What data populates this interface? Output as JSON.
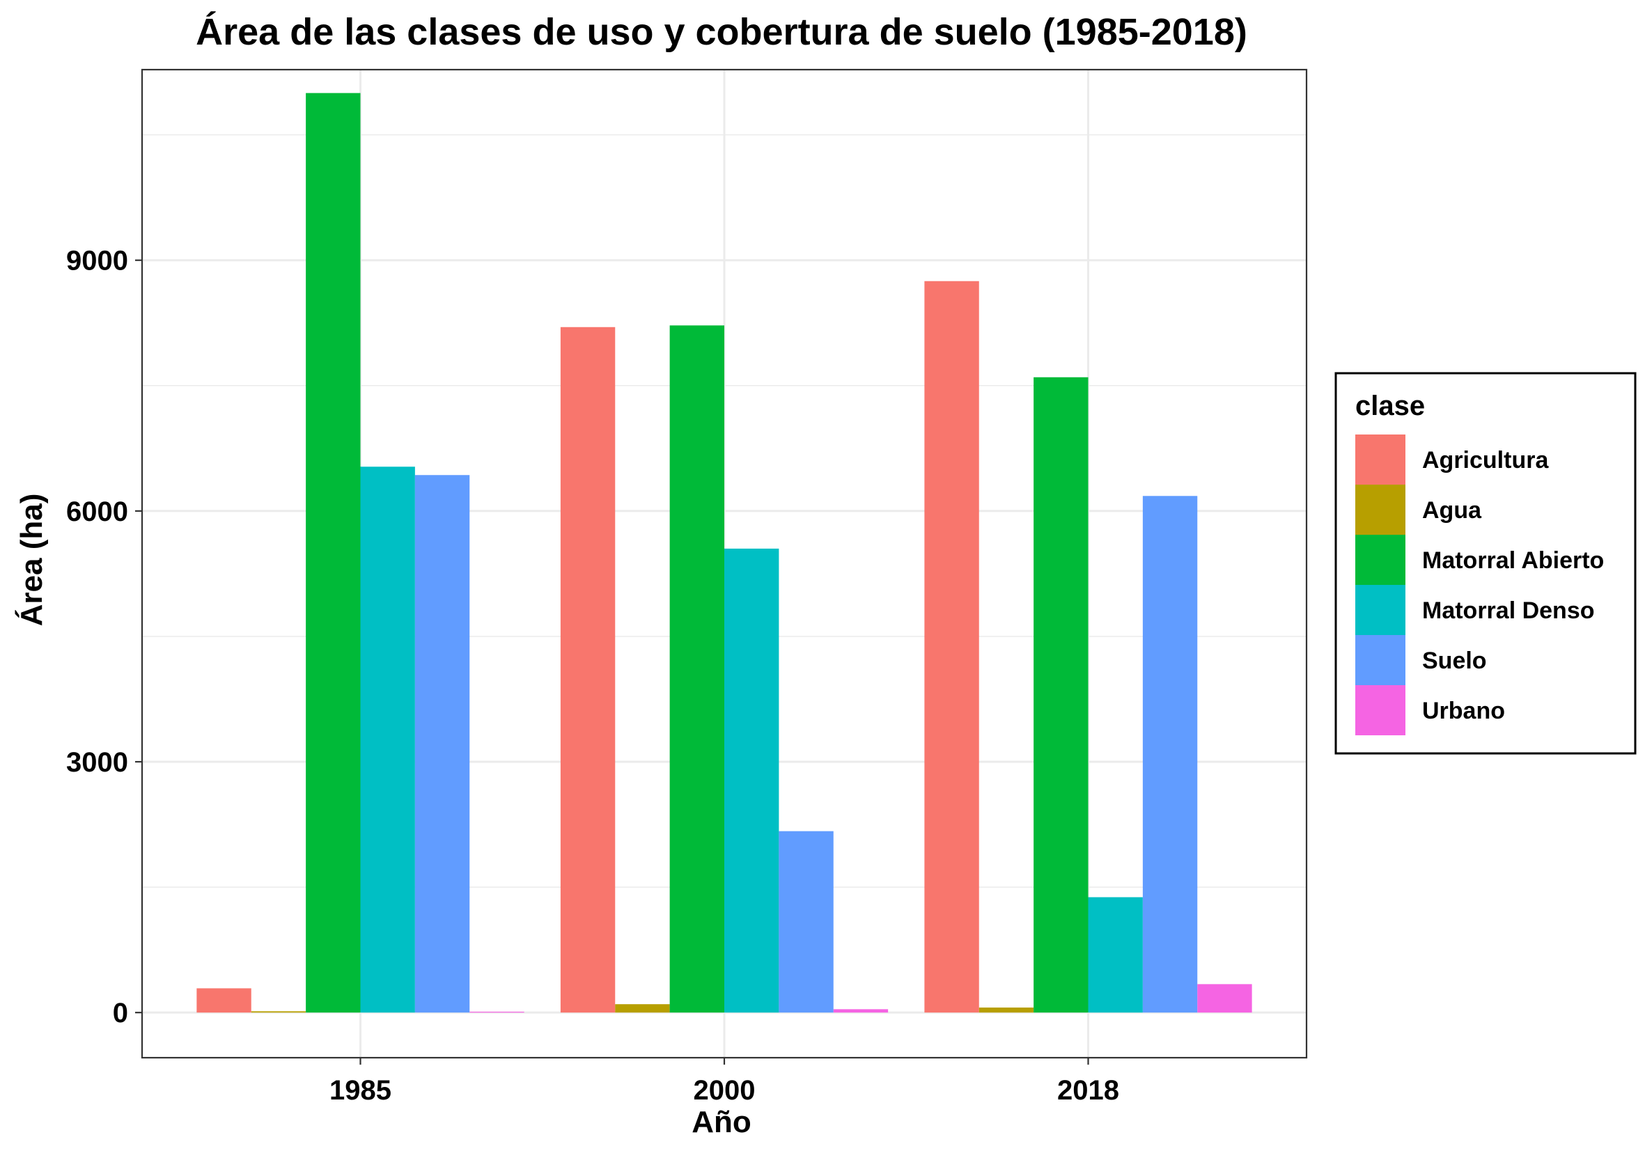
{
  "chart_data": {
    "type": "bar",
    "title": "Área de las clases de uso y cobertura de suelo (1985-2018)",
    "xlabel": "Año",
    "ylabel": "Área (ha)",
    "categories": [
      "1985",
      "2000",
      "2018"
    ],
    "ylim": [
      -540,
      11280
    ],
    "yticks": [
      0,
      3000,
      6000,
      9000
    ],
    "y_minor_gridlines": [
      1500,
      4500,
      7500,
      10500
    ],
    "grid": true,
    "legend": {
      "title": "clase",
      "placement": "right"
    },
    "series": [
      {
        "name": "Agricultura",
        "color": "#F8766D",
        "values": [
          290,
          8200,
          8750
        ]
      },
      {
        "name": "Agua",
        "color": "#B79F00",
        "values": [
          15,
          100,
          60
        ]
      },
      {
        "name": "Matorral Abierto",
        "color": "#00BA38",
        "values": [
          11000,
          8220,
          7600
        ]
      },
      {
        "name": "Matorral Denso",
        "color": "#00BFC4",
        "values": [
          6530,
          5550,
          1380
        ]
      },
      {
        "name": "Suelo",
        "color": "#619CFF",
        "values": [
          6430,
          2170,
          6180
        ]
      },
      {
        "name": "Urbano",
        "color": "#F564E3",
        "values": [
          10,
          40,
          340
        ]
      }
    ]
  }
}
